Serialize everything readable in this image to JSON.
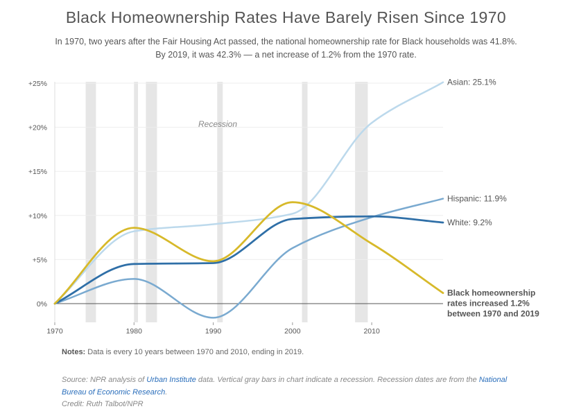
{
  "header": {
    "title": "Black Homeownership Rates Have Barely Risen Since 1970",
    "subtitle_line1": "In 1970, two years after the Fair Housing Act passed, the national homeownership rate for Black households was 41.8%.",
    "subtitle_line2": "By 2019, it was 42.3% — a net increase of 1.2% from the 1970 rate."
  },
  "chart_data": {
    "type": "line",
    "x_ticks": [
      "1970",
      "1980",
      "1990",
      "2000",
      "2010"
    ],
    "y_ticks": [
      "0%",
      "+5%",
      "+10%",
      "+15%",
      "+20%",
      "+25%"
    ],
    "xlim": [
      1970,
      2019
    ],
    "ylim": [
      -2,
      25.5
    ],
    "recession_label": "Recession",
    "recessions": [
      [
        1973.9,
        1975.2
      ],
      [
        1980.0,
        1980.5
      ],
      [
        1981.5,
        1982.9
      ],
      [
        1990.5,
        1991.2
      ],
      [
        2001.2,
        2001.9
      ],
      [
        2007.9,
        2009.5
      ]
    ],
    "series": [
      {
        "name": "Asian",
        "label": "Asian: 25.1%",
        "color": "#bcd9ec",
        "width": 2.5,
        "points": [
          [
            1970,
            0
          ],
          [
            1980,
            8.2
          ],
          [
            1990,
            9.0
          ],
          [
            2000,
            10.2
          ],
          [
            2010,
            20.5
          ],
          [
            2019,
            25.1
          ]
        ]
      },
      {
        "name": "Hispanic",
        "label": "Hispanic: 11.9%",
        "color": "#7aaad0",
        "width": 2.5,
        "points": [
          [
            1970,
            0
          ],
          [
            1980,
            2.8
          ],
          [
            1990,
            -1.6
          ],
          [
            2000,
            6.3
          ],
          [
            2010,
            9.8
          ],
          [
            2019,
            11.9
          ]
        ]
      },
      {
        "name": "White",
        "label": "White: 9.2%",
        "color": "#2f6fa7",
        "width": 2.8,
        "points": [
          [
            1970,
            0
          ],
          [
            1980,
            4.5
          ],
          [
            1990,
            4.6
          ],
          [
            2000,
            9.6
          ],
          [
            2010,
            9.9
          ],
          [
            2019,
            9.2
          ]
        ]
      },
      {
        "name": "Black",
        "label": "Black homeownership rates increased 1.2% between 1970 and 2019",
        "label_lines": [
          "Black homeownership",
          "rates increased 1.2%",
          "between 1970 and 2019"
        ],
        "color": "#d7b92a",
        "width": 2.8,
        "points": [
          [
            1970,
            0
          ],
          [
            1980,
            8.6
          ],
          [
            1990,
            4.8
          ],
          [
            2000,
            11.5
          ],
          [
            2010,
            6.8
          ],
          [
            2019,
            1.2
          ]
        ]
      }
    ]
  },
  "footer": {
    "notes_label": "Notes:",
    "notes_text": " Data is every 10 years between 1970 and 2010, ending in 2019.",
    "source_a": "Source: NPR analysis of ",
    "source_link1": "Urban Institute",
    "source_b": " data. Vertical gray bars in chart indicate a recession. Recession dates are from the ",
    "source_link2": "National Bureau of Economic Research",
    "source_c": ".",
    "credit": "Credit: Ruth Talbot/NPR"
  }
}
